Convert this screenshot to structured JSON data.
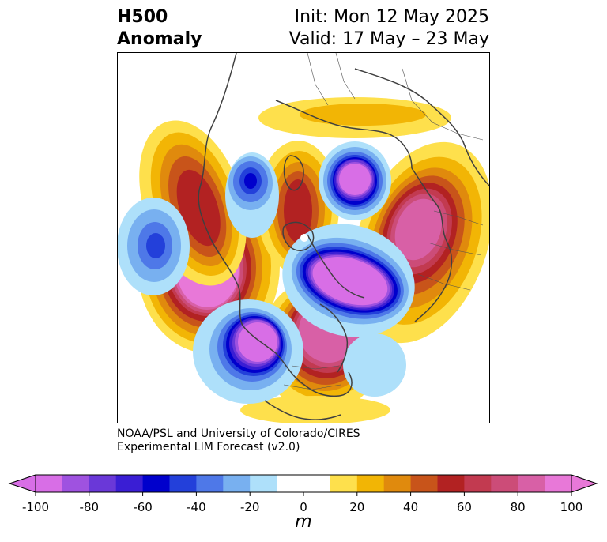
{
  "title": {
    "left_line1": "H500",
    "left_line2": "Anomaly",
    "right_line1": "Init: Mon 12 May 2025",
    "right_line2": "Valid: 17 May – 23 May"
  },
  "credit": {
    "line1": "NOAA/PSL and University of Colorado/CIRES",
    "line2": "Experimental LIM Forecast (v2.0)"
  },
  "colorbar": {
    "unit": "m",
    "ticks": [
      "-100",
      "-80",
      "-60",
      "-40",
      "-20",
      "0",
      "20",
      "40",
      "60",
      "80",
      "100"
    ],
    "tick_values": [
      -100,
      -80,
      -60,
      -40,
      -20,
      0,
      20,
      40,
      60,
      80,
      100
    ],
    "colors": [
      "#d86ee6",
      "#9f52e0",
      "#6a38d8",
      "#3a1ed4",
      "#0000cc",
      "#2340da",
      "#4e78e8",
      "#78b0f0",
      "#aee0fa",
      "#ffffff",
      "#ffffff",
      "#fee04c",
      "#f2b505",
      "#e08a0d",
      "#c8541a",
      "#b22222",
      "#c23a50",
      "#cc4c78",
      "#d860a6",
      "#e878d8"
    ],
    "under_color": "#d86ee6",
    "over_color": "#e878d8"
  },
  "map": {
    "projection": "north-polar-stereographic",
    "field": "500 hPa geopotential height anomaly",
    "anomaly_centers": [
      {
        "sign": "positive",
        "peak_m": 100,
        "region": "North Pacific"
      },
      {
        "sign": "positive",
        "peak_m": 90,
        "region": "Eastern North America"
      },
      {
        "sign": "positive",
        "peak_m": 80,
        "region": "Western Russia"
      },
      {
        "sign": "positive",
        "peak_m": 60,
        "region": "Eastern Siberia"
      },
      {
        "sign": "positive",
        "peak_m": 60,
        "region": "Greenland / Arctic"
      },
      {
        "sign": "negative",
        "peak_m": -100,
        "region": "Northeast Pacific / Western US"
      },
      {
        "sign": "negative",
        "peak_m": -100,
        "region": "North Atlantic"
      },
      {
        "sign": "negative",
        "peak_m": -100,
        "region": "Scandinavia / Northern Russia"
      },
      {
        "sign": "negative",
        "peak_m": -60,
        "region": "Central Siberia"
      },
      {
        "sign": "negative",
        "peak_m": -50,
        "region": "Western Pacific"
      }
    ]
  }
}
